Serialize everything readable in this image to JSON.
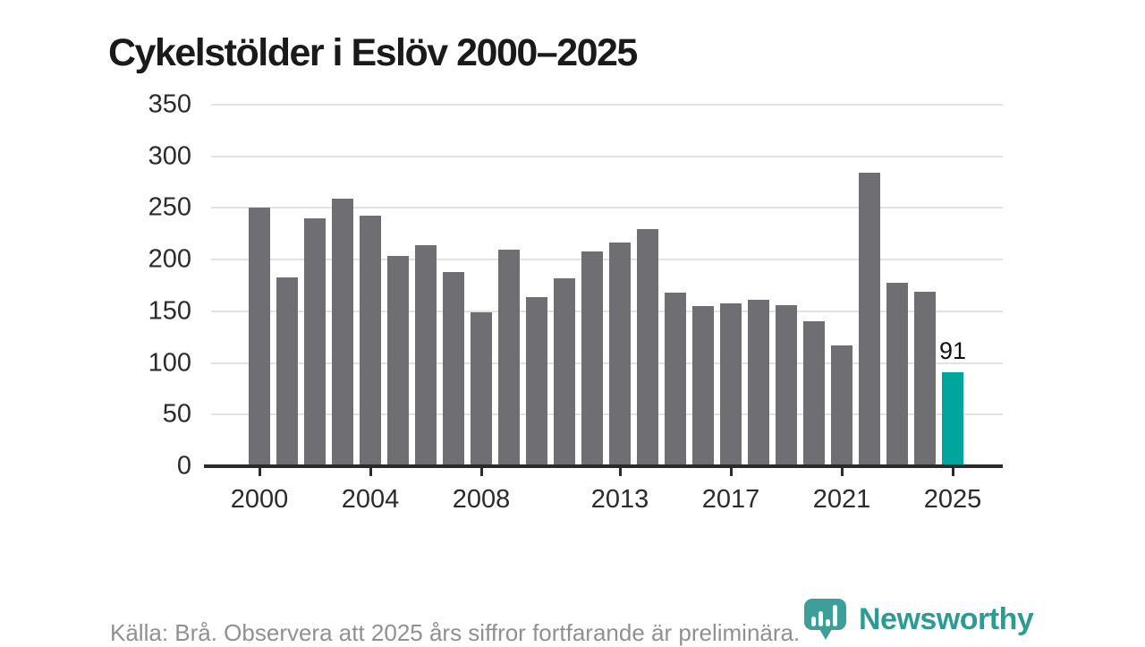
{
  "title": "Cykelstölder i Eslöv 2000–2025",
  "footer": {
    "source_text": "Källa: Brå. Observera att 2025 års siffror fortfarande är preliminära.",
    "brand": "Newsworthy"
  },
  "colors": {
    "bar": "#6e6e73",
    "highlight": "#00a59d",
    "grid": "#e2e2e2",
    "axis": "#2b2b2b",
    "title_text": "#1a1a1a",
    "footer_text": "#909090",
    "brand_text": "#2b9c94",
    "badge_fill": "#3d9f98"
  },
  "chart_data": {
    "type": "bar",
    "title": "Cykelstölder i Eslöv 2000–2025",
    "categories": [
      "2000",
      "2001",
      "2002",
      "2003",
      "2004",
      "2005",
      "2006",
      "2007",
      "2008",
      "2009",
      "2010",
      "2011",
      "2012",
      "2013",
      "2014",
      "2015",
      "2016",
      "2017",
      "2018",
      "2019",
      "2020",
      "2021",
      "2022",
      "2023",
      "2024",
      "2025"
    ],
    "values": [
      250,
      183,
      240,
      259,
      243,
      204,
      214,
      188,
      149,
      210,
      164,
      182,
      208,
      217,
      230,
      168,
      155,
      158,
      161,
      156,
      140,
      117,
      284,
      178,
      169,
      91
    ],
    "xlabel": "",
    "ylabel": "",
    "ylim": [
      0,
      350
    ],
    "yticks": [
      0,
      50,
      100,
      150,
      200,
      250,
      300,
      350
    ],
    "xticks": [
      "2000",
      "2004",
      "2008",
      "2013",
      "2017",
      "2021",
      "2025"
    ],
    "grid": "horizontal",
    "legend": "none",
    "highlight": {
      "category": "2025",
      "value": 91,
      "label": "91"
    }
  }
}
